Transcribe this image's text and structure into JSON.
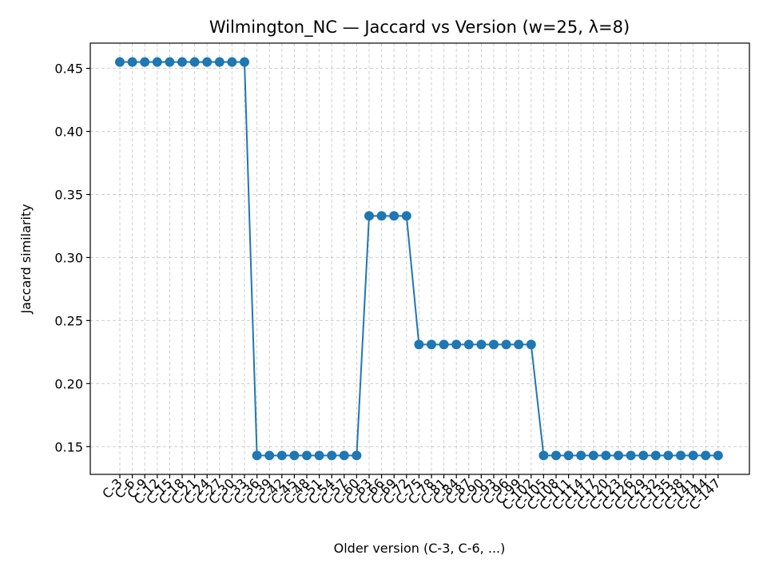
{
  "chart_data": {
    "type": "line",
    "title": "Wilmington_NC — Jaccard vs Version (w=25, λ=8)",
    "xlabel": "Older version (C-3, C-6, ...)",
    "ylabel": "Jaccard similarity",
    "ylim": [
      0.128,
      0.47
    ],
    "yticks": [
      0.15,
      0.2,
      0.25,
      0.3,
      0.35,
      0.4,
      0.45
    ],
    "grid": true,
    "color": "#1f77b4",
    "x": [
      "C-3",
      "C-6",
      "C-9",
      "C-12",
      "C-15",
      "C-18",
      "C-21",
      "C-24",
      "C-27",
      "C-30",
      "C-33",
      "C-36",
      "C-39",
      "C-42",
      "C-45",
      "C-48",
      "C-51",
      "C-54",
      "C-57",
      "C-60",
      "C-63",
      "C-66",
      "C-69",
      "C-72",
      "C-75",
      "C-78",
      "C-81",
      "C-84",
      "C-87",
      "C-90",
      "C-93",
      "C-96",
      "C-99",
      "C-102",
      "C-105",
      "C-108",
      "C-111",
      "C-114",
      "C-117",
      "C-120",
      "C-123",
      "C-126",
      "C-129",
      "C-132",
      "C-135",
      "C-138",
      "C-141",
      "C-144",
      "C-147"
    ],
    "y": [
      0.455,
      0.455,
      0.455,
      0.455,
      0.455,
      0.455,
      0.455,
      0.455,
      0.455,
      0.455,
      0.455,
      0.143,
      0.143,
      0.143,
      0.143,
      0.143,
      0.143,
      0.143,
      0.143,
      0.143,
      0.333,
      0.333,
      0.333,
      0.333,
      0.231,
      0.231,
      0.231,
      0.231,
      0.231,
      0.231,
      0.231,
      0.231,
      0.231,
      0.231,
      0.143,
      0.143,
      0.143,
      0.143,
      0.143,
      0.143,
      0.143,
      0.143,
      0.143,
      0.143,
      0.143,
      0.143,
      0.143,
      0.143,
      0.143
    ]
  }
}
